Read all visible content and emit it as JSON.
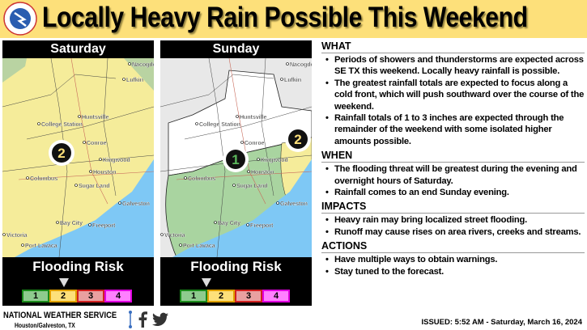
{
  "header": {
    "title": "Locally Heavy Rain Possible This Weekend",
    "logo_text": "NATIONAL WEATHER SERVICE"
  },
  "colors": {
    "banner": "#fde07a",
    "risk1": "#8ecb8e",
    "risk2": "#fde07a",
    "risk3": "#e9a0a0",
    "risk4": "#ff80ff",
    "ocean": "#7ec8f5"
  },
  "panels": [
    {
      "day": "Saturday",
      "risk_level": 2,
      "label": "Flooding Risk"
    },
    {
      "day": "Sunday",
      "risk_level": 1,
      "secondary_risk_level": 2,
      "label": "Flooding Risk"
    }
  ],
  "scale": [
    "1",
    "2",
    "3",
    "4"
  ],
  "cities": [
    "Nacogdoches",
    "Lufkin",
    "Huntsville",
    "College Station",
    "Conroe",
    "Kingwood",
    "Houston",
    "Columbus",
    "Sugar Land",
    "Galveston",
    "Bay City",
    "Freeport",
    "Victoria",
    "Port Lavaca"
  ],
  "sections": [
    {
      "heading": "WHAT",
      "items": [
        "Periods of showers and thunderstorms are expected across SE TX this weekend. Locally heavy rainfall is possible.",
        "The greatest rainfall totals are expected to focus along a cold front, which will push southward over the course of the weekend.",
        "Rainfall totals of 1 to 3 inches are expected through the remainder of the weekend with some isolated higher amounts possible."
      ]
    },
    {
      "heading": "WHEN",
      "items": [
        "The flooding threat will be greatest during the evening and overnight hours of Saturday.",
        "Rainfall comes to an end Sunday evening."
      ]
    },
    {
      "heading": "IMPACTS",
      "items": [
        "Heavy rain may bring localized street flooding.",
        "Runoff may cause rises on area rivers, creeks and streams."
      ]
    },
    {
      "heading": "ACTIONS",
      "items": [
        "Have multiple ways to obtain warnings.",
        "Stay tuned to the forecast."
      ]
    }
  ],
  "footer": {
    "office": "NATIONAL WEATHER SERVICE",
    "location": "Houston/Galveston, TX",
    "issued": "ISSUED: 5:52 AM - Saturday, March 16, 2024",
    "social": [
      "facebook-icon",
      "twitter-icon"
    ]
  }
}
